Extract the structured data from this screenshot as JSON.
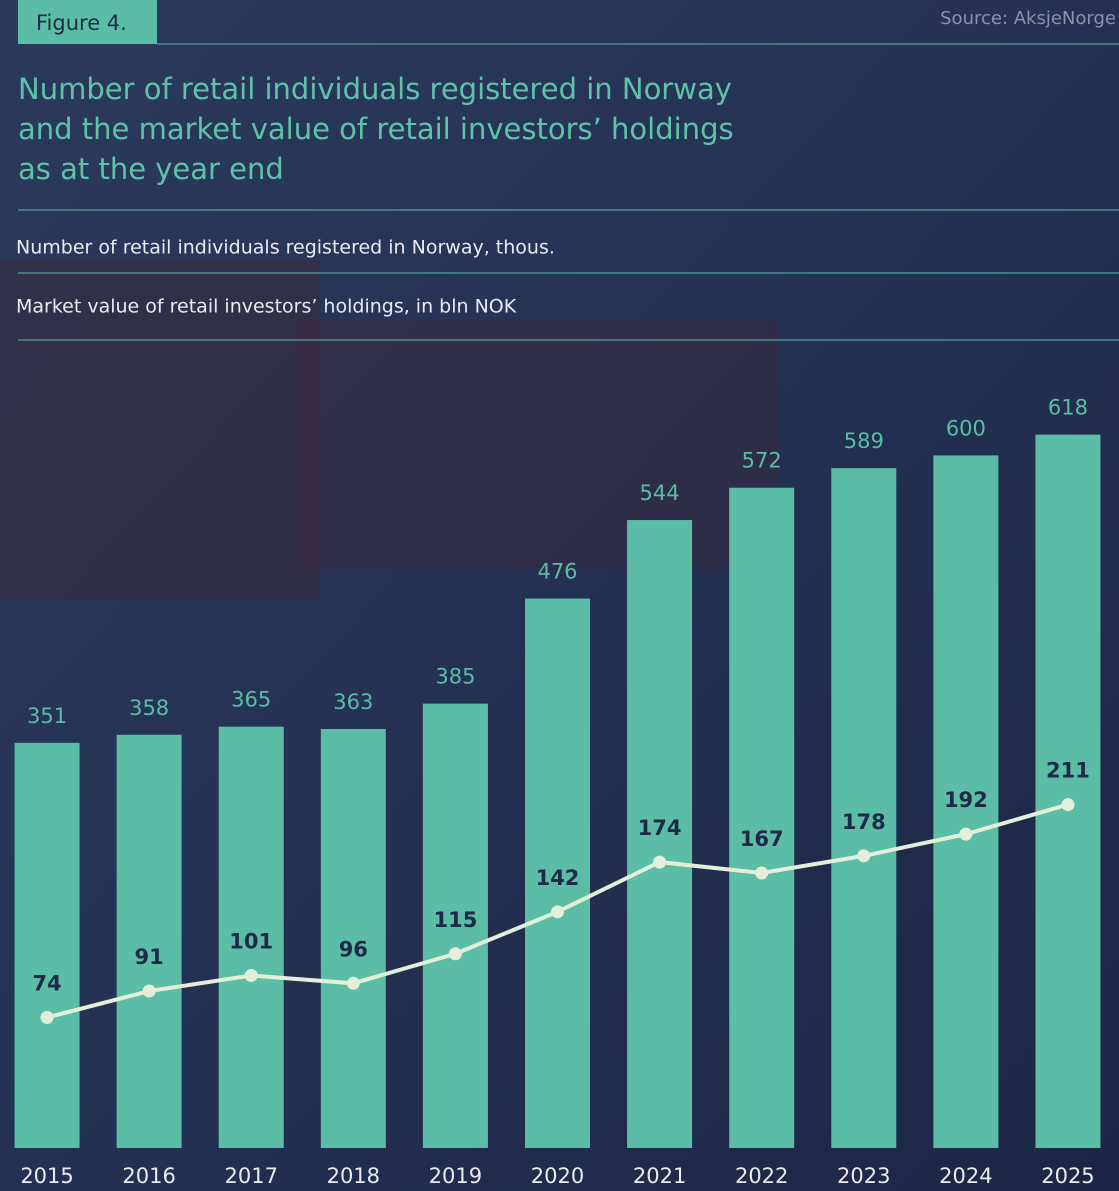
{
  "chart_data": {
    "type": "bar-line",
    "figure_label": "Figure 4.",
    "source": "Source: AksjeNorge",
    "title": [
      "Number of retail individuals registered in Norway",
      "and the market value of retail investors’ holdings",
      "as at the year end"
    ],
    "categories": [
      "2015",
      "2016",
      "2017",
      "2018",
      "2019",
      "2020",
      "2021",
      "2022",
      "2023",
      "2024",
      "2025"
    ],
    "series": [
      {
        "name": "Number of retail individuals registered in Norway, thous.",
        "type": "bar",
        "color": "#5bbda5",
        "values": [
          351,
          358,
          365,
          363,
          385,
          476,
          544,
          572,
          589,
          600,
          618
        ]
      },
      {
        "name": "Market value of retail investors’ holdings, in bln NOK",
        "type": "line",
        "axis": "y2",
        "color": "#e4efd9",
        "values": [
          74,
          91,
          101,
          96,
          115,
          142,
          174,
          167,
          178,
          192,
          211
        ]
      }
    ],
    "ylim": [
      0,
      700
    ],
    "y2lim": [
      -10,
      510
    ]
  }
}
